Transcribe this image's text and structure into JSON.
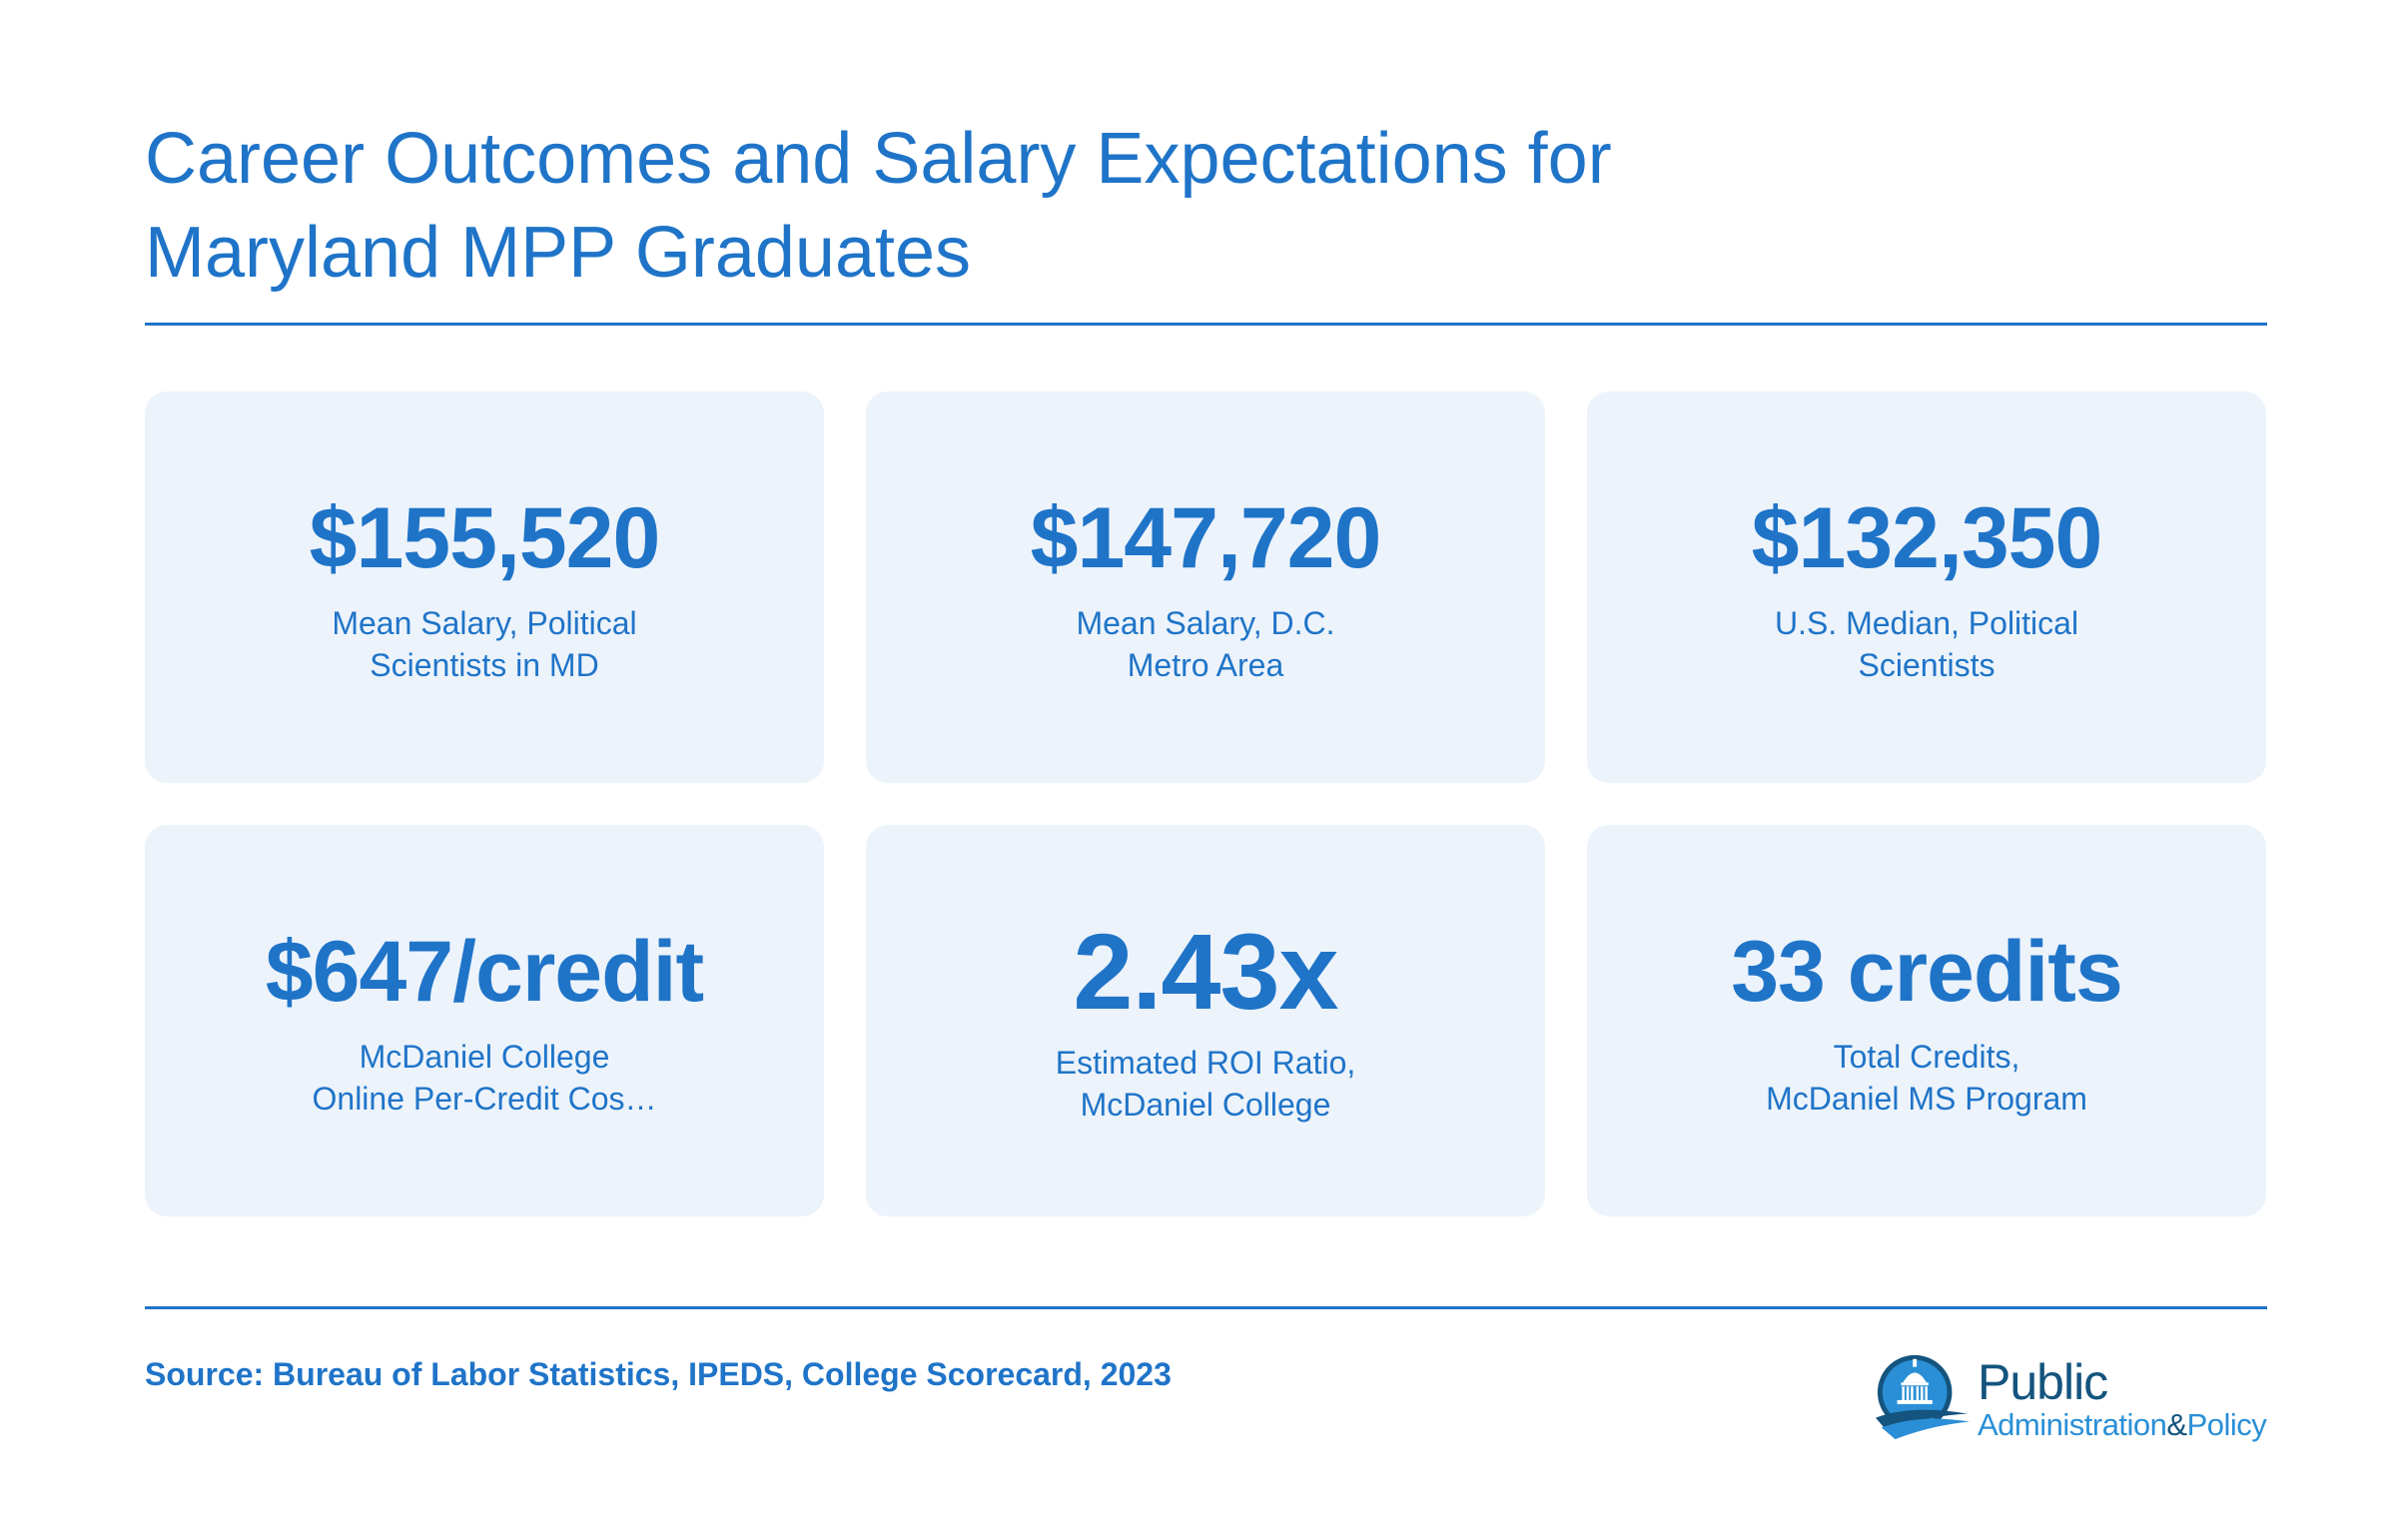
{
  "header": {
    "title": "Career Outcomes and Salary Expectations for\nMaryland MPP Graduates"
  },
  "cards": [
    {
      "value": "$155,520",
      "label": "Mean Salary, Political\nScientists in MD"
    },
    {
      "value": "$147,720",
      "label": "Mean Salary, D.C.\nMetro Area"
    },
    {
      "value": "$132,350",
      "label": "U.S. Median, Political\nScientists"
    },
    {
      "value": "$647/credit",
      "label": "McDaniel College\nOnline Per-Credit Cos…"
    },
    {
      "value": "2.43x",
      "label": "Estimated ROI Ratio,\nMcDaniel College"
    },
    {
      "value": "33 credits",
      "label": "Total Credits,\nMcDaniel MS Program"
    }
  ],
  "footer": {
    "source": "Source: Bureau of Labor Statistics, IPEDS, College Scorecard, 2023"
  },
  "logo": {
    "line1": "Public",
    "line2_a": "Administration",
    "line2_amp": "&",
    "line2_b": "Policy",
    "icon": "capitol-dome-icon"
  },
  "colors": {
    "accent": "#1f74c8",
    "card_background": "#ecf3fb",
    "logo_dark": "#14547f",
    "logo_light": "#2a8fd6"
  }
}
